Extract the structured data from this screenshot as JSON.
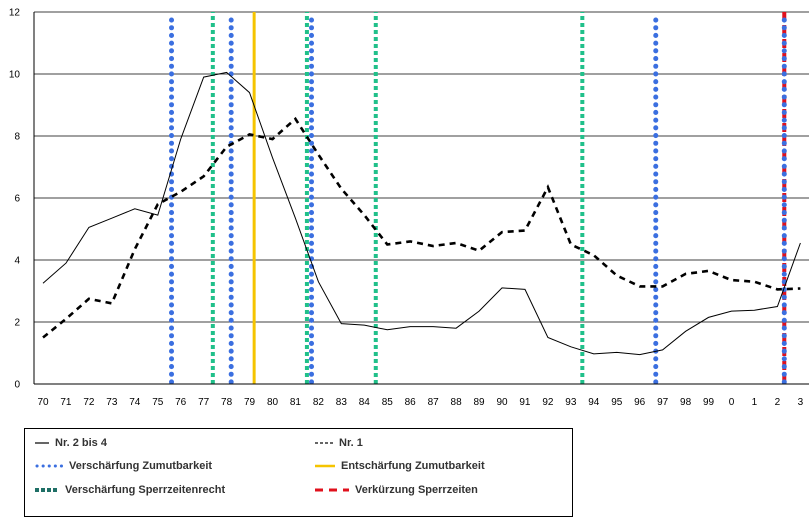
{
  "chart_data": {
    "type": "line",
    "x": [
      "70",
      "71",
      "72",
      "73",
      "74",
      "75",
      "76",
      "77",
      "78",
      "79",
      "80",
      "81",
      "82",
      "83",
      "84",
      "85",
      "86",
      "87",
      "88",
      "89",
      "90",
      "91",
      "92",
      "93",
      "94",
      "95",
      "96",
      "97",
      "98",
      "99",
      "0",
      "1",
      "2",
      "3"
    ],
    "xticks": [
      "70",
      "71",
      "72",
      "73",
      "74",
      "75",
      "76",
      "77",
      "78",
      "79",
      "80",
      "81",
      "82",
      "83",
      "84",
      "85",
      "86",
      "87",
      "88",
      "89",
      "90",
      "91",
      "92",
      "93",
      "94",
      "95",
      "96",
      "97",
      "98",
      "99",
      "0",
      "1",
      "2",
      "3"
    ],
    "ylim": [
      0,
      12
    ],
    "yticks": [
      "0",
      "2",
      "4",
      "6",
      "8",
      "10",
      "12"
    ],
    "grid": true,
    "series": [
      {
        "name": "Nr. 2 bis 4",
        "style": "solid",
        "color": "#000000",
        "values": [
          3.25,
          3.9,
          5.05,
          5.35,
          5.65,
          5.45,
          7.9,
          9.9,
          10.05,
          9.4,
          7.3,
          5.35,
          3.3,
          1.95,
          1.9,
          1.75,
          1.85,
          1.85,
          1.8,
          2.35,
          3.1,
          3.05,
          1.5,
          1.2,
          0.97,
          1.02,
          0.95,
          1.1,
          1.7,
          2.15,
          2.35,
          2.38,
          2.5,
          4.55
        ]
      },
      {
        "name": "Nr. 1",
        "style": "dashed",
        "color": "#000000",
        "values": [
          1.5,
          2.1,
          2.75,
          2.6,
          4.35,
          5.8,
          6.2,
          6.7,
          7.65,
          8.05,
          7.9,
          8.55,
          7.4,
          6.3,
          5.45,
          4.5,
          4.6,
          4.45,
          4.55,
          4.3,
          4.9,
          4.95,
          6.35,
          4.5,
          4.15,
          3.5,
          3.15,
          3.15,
          3.55,
          3.65,
          3.35,
          3.3,
          3.05,
          3.08
        ]
      }
    ],
    "events": [
      {
        "x": 75.6,
        "type": "Verschärfung Zumutbarkeit"
      },
      {
        "x": 77.4,
        "type": "Verschärfung Sperrzeitenrecht"
      },
      {
        "x": 78.2,
        "type": "Verschärfung Zumutbarkeit"
      },
      {
        "x": 79.2,
        "type": "Entschärfung Zumutbarkeit"
      },
      {
        "x": 81.5,
        "type": "Verschärfung Sperrzeitenrecht"
      },
      {
        "x": 81.7,
        "type": "Verschärfung Zumutbarkeit"
      },
      {
        "x": 84.5,
        "type": "Verschärfung Sperrzeitenrecht"
      },
      {
        "x": 93.5,
        "type": "Verschärfung Sperrzeitenrecht"
      },
      {
        "x": 96.7,
        "type": "Verschärfung Zumutbarkeit"
      },
      {
        "x": 102.3,
        "type": "Verkürzung Sperrzeiten"
      }
    ],
    "legend": [
      {
        "label": "Nr. 2 bis 4",
        "kind": "line-solid",
        "color": "#333333"
      },
      {
        "label": "Nr. 1",
        "kind": "line-dashed",
        "color": "#333333"
      },
      {
        "label": "Verschärfung Zumutbarkeit",
        "kind": "dots",
        "color": "#3b6fe0"
      },
      {
        "label": "Entschärfung Zumutbarkeit",
        "kind": "solid-bar",
        "color": "#f5c400"
      },
      {
        "label": "Verschärfung Sperrzeitenrecht",
        "kind": "squares",
        "color": "#1f8c6a"
      },
      {
        "label": "Verkürzung Sperrzeiten",
        "kind": "dashes",
        "color": "#e0101c"
      }
    ],
    "legend_position": "bottom"
  }
}
